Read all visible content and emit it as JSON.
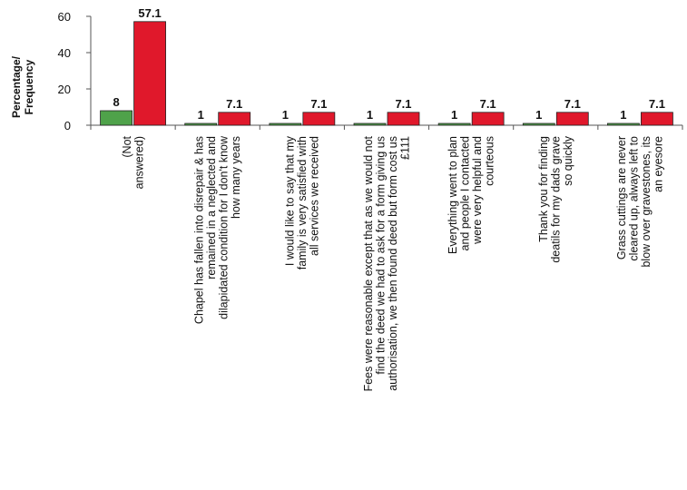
{
  "chart_data": {
    "type": "bar",
    "ylabel": [
      "Percentage/",
      "Frequency"
    ],
    "ylim": [
      0,
      60
    ],
    "yticks": [
      0,
      20,
      40,
      60
    ],
    "grid": false,
    "legend": "none",
    "series": [
      {
        "name": "",
        "color": "#4fa24a",
        "values": [
          8,
          1,
          1,
          1,
          1,
          1,
          1
        ]
      },
      {
        "name": "",
        "color": "#e0182b",
        "values": [
          57.1,
          7.1,
          7.1,
          7.1,
          7.1,
          7.1,
          7.1
        ]
      }
    ],
    "categories": [
      {
        "lines": [
          "(Not",
          "answered)"
        ]
      },
      {
        "lines": [
          "Chapel has fallen into disrepair & has",
          "remained in a neglected and",
          "dilapidated condition for I don't know",
          "how many years"
        ]
      },
      {
        "lines": [
          "I would like to say that my",
          "family is very satisfied with",
          "all services we received"
        ]
      },
      {
        "lines": [
          "Fees were reasonable except that as we would not",
          "find the deed we had to ask for a form giving us",
          "authorisation, we then found deed but form cost us",
          "£111"
        ]
      },
      {
        "lines": [
          "Everything went to plan",
          "and people I contacted",
          "were very helpful and",
          "courteous"
        ]
      },
      {
        "lines": [
          "Thank you for finding",
          "deatils for my dads grave",
          "so quickly"
        ]
      },
      {
        "lines": [
          "Grass cuttings are never",
          "cleared up, always left to",
          "blow over gravestones, its",
          "an eyesore"
        ]
      }
    ]
  }
}
